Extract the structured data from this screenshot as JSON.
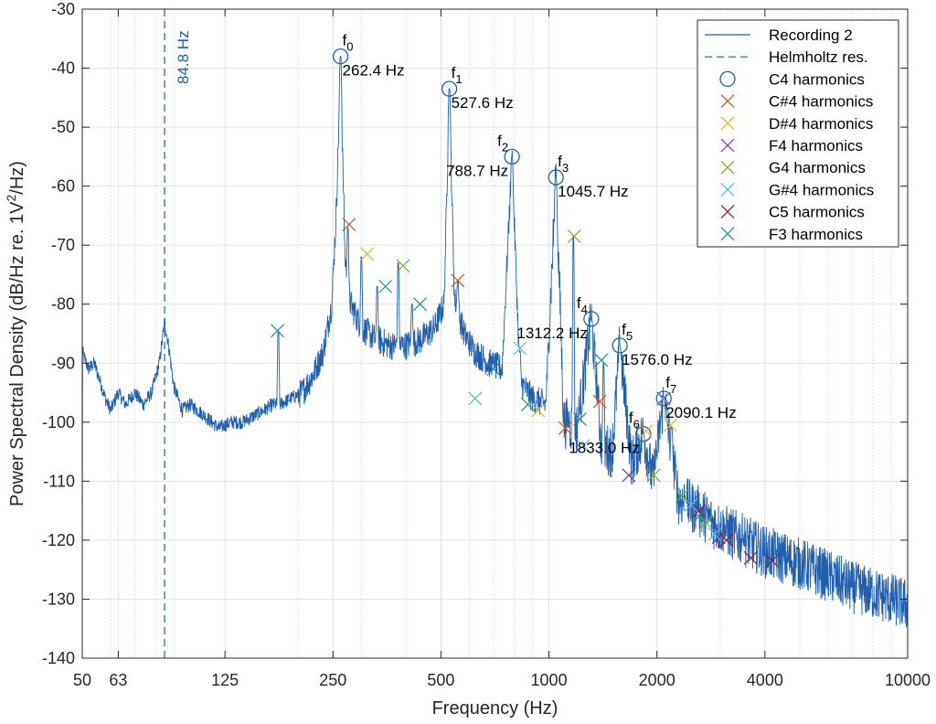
{
  "chart_data": {
    "type": "line",
    "xlabel": "Frequency (Hz)",
    "ylabel_main": "Power Spectral Density (dB/Hz re. 1V",
    "ylabel_sup": "2",
    "ylabel_tail": "/Hz)",
    "x_scale": "log",
    "xlim": [
      50,
      10000
    ],
    "ylim": [
      -140,
      -30
    ],
    "x_ticks": [
      {
        "value": 50,
        "label": "50"
      },
      {
        "value": 63,
        "label": "63"
      },
      {
        "value": 125,
        "label": "125"
      },
      {
        "value": 250,
        "label": "250"
      },
      {
        "value": 500,
        "label": "500"
      },
      {
        "value": 1000,
        "label": "1000"
      },
      {
        "value": 2000,
        "label": "2000"
      },
      {
        "value": 4000,
        "label": "4000"
      },
      {
        "value": 10000,
        "label": "10000"
      }
    ],
    "y_ticks": [
      {
        "value": -30,
        "label": "-30"
      },
      {
        "value": -40,
        "label": "-40"
      },
      {
        "value": -50,
        "label": "-50"
      },
      {
        "value": -60,
        "label": "-60"
      },
      {
        "value": -70,
        "label": "-70"
      },
      {
        "value": -80,
        "label": "-80"
      },
      {
        "value": -90,
        "label": "-90"
      },
      {
        "value": -100,
        "label": "-100"
      },
      {
        "value": -110,
        "label": "-110"
      },
      {
        "value": -120,
        "label": "-120"
      },
      {
        "value": -130,
        "label": "-130"
      },
      {
        "value": -140,
        "label": "-140"
      }
    ],
    "grid": true,
    "minor_grid_x": [
      60,
      70,
      80,
      90,
      200,
      300,
      400,
      600,
      700,
      800,
      900,
      3000,
      5000,
      6000,
      7000,
      8000,
      9000
    ],
    "legend_position": "top-right",
    "line_color": "#1f5fae",
    "spectrum": {
      "name": "Recording 2",
      "base_points": [
        [
          50,
          -88
        ],
        [
          52,
          -91
        ],
        [
          54,
          -90
        ],
        [
          56,
          -93
        ],
        [
          58,
          -96
        ],
        [
          60,
          -98
        ],
        [
          63,
          -95
        ],
        [
          66,
          -97
        ],
        [
          70,
          -95
        ],
        [
          74,
          -97
        ],
        [
          78,
          -95
        ],
        [
          82,
          -90
        ],
        [
          84.8,
          -83
        ],
        [
          87,
          -87
        ],
        [
          90,
          -94
        ],
        [
          95,
          -98
        ],
        [
          100,
          -97
        ],
        [
          110,
          -99
        ],
        [
          120,
          -101
        ],
        [
          130,
          -100
        ],
        [
          140,
          -100
        ],
        [
          150,
          -99
        ],
        [
          160,
          -98
        ],
        [
          170,
          -97
        ],
        [
          178,
          -97
        ],
        [
          190,
          -96
        ],
        [
          205,
          -95
        ],
        [
          220,
          -92
        ],
        [
          235,
          -88
        ],
        [
          248,
          -80
        ],
        [
          255,
          -65
        ],
        [
          258,
          -55
        ],
        [
          262.4,
          -38
        ],
        [
          266,
          -55
        ],
        [
          270,
          -72
        ],
        [
          280,
          -80
        ],
        [
          300,
          -84
        ],
        [
          330,
          -86
        ],
        [
          360,
          -87
        ],
        [
          400,
          -87
        ],
        [
          440,
          -86
        ],
        [
          480,
          -84
        ],
        [
          510,
          -80
        ],
        [
          527.6,
          -43.5
        ],
        [
          545,
          -79
        ],
        [
          580,
          -85
        ],
        [
          620,
          -88
        ],
        [
          680,
          -90
        ],
        [
          740,
          -91
        ],
        [
          788.7,
          -55
        ],
        [
          830,
          -93
        ],
        [
          900,
          -96
        ],
        [
          980,
          -97
        ],
        [
          1045.7,
          -58.5
        ],
        [
          1100,
          -100
        ],
        [
          1200,
          -101
        ],
        [
          1312.2,
          -82.5
        ],
        [
          1400,
          -104
        ],
        [
          1500,
          -105
        ],
        [
          1576,
          -87
        ],
        [
          1700,
          -107
        ],
        [
          1833,
          -102
        ],
        [
          1950,
          -110
        ],
        [
          2090.1,
          -96
        ],
        [
          2300,
          -113
        ],
        [
          2600,
          -115
        ],
        [
          3000,
          -118
        ],
        [
          3500,
          -120
        ],
        [
          4000,
          -122
        ],
        [
          5000,
          -124
        ],
        [
          6000,
          -126
        ],
        [
          7000,
          -128
        ],
        [
          8000,
          -129
        ],
        [
          9000,
          -130
        ],
        [
          10000,
          -131
        ]
      ],
      "spikes": [
        [
          176,
          -84.5
        ],
        [
          262.4,
          -38
        ],
        [
          275,
          -67
        ],
        [
          300,
          -72
        ],
        [
          332,
          -77
        ],
        [
          380,
          -73
        ],
        [
          415,
          -80
        ],
        [
          527.6,
          -43.5
        ],
        [
          557,
          -76
        ],
        [
          600,
          -96
        ],
        [
          700,
          -91
        ],
        [
          788.7,
          -55
        ],
        [
          830,
          -88
        ],
        [
          880,
          -97
        ],
        [
          930,
          -98
        ],
        [
          1045.7,
          -58.5
        ],
        [
          1130,
          -101
        ],
        [
          1170,
          -68.5
        ],
        [
          1210,
          -100
        ],
        [
          1312.2,
          -82.5
        ],
        [
          1360,
          -97
        ],
        [
          1420,
          -90
        ],
        [
          1576,
          -87
        ],
        [
          1670,
          -110
        ],
        [
          1833,
          -102
        ],
        [
          1990,
          -109
        ],
        [
          2090.1,
          -96
        ],
        [
          2200,
          -101
        ],
        [
          2400,
          -113
        ],
        [
          2600,
          -115
        ],
        [
          2800,
          -117
        ],
        [
          3100,
          -120
        ],
        [
          3500,
          -121
        ]
      ]
    },
    "helmholtz": {
      "name": "Helmholtz res.",
      "x": 84.8,
      "label": "84.8 Hz",
      "color": "#1f5fae"
    },
    "peaks": [
      {
        "f": 262.4,
        "db": -38,
        "sym": "f",
        "sub": "0",
        "freq_label": "262.4 Hz",
        "sym_anchor": "top-right",
        "freq_anchor": "below-right"
      },
      {
        "f": 527.6,
        "db": -43.5,
        "sym": "f",
        "sub": "1",
        "freq_label": "527.6 Hz",
        "sym_anchor": "top-right",
        "freq_anchor": "below-right"
      },
      {
        "f": 788.7,
        "db": -55,
        "sym": "f",
        "sub": "2",
        "freq_label": "788.7 Hz",
        "sym_anchor": "top-left",
        "freq_anchor": "below-left"
      },
      {
        "f": 1045.7,
        "db": -58.5,
        "sym": "f",
        "sub": "3",
        "freq_label": "1045.7 Hz",
        "sym_anchor": "top-right",
        "freq_anchor": "below-right"
      },
      {
        "f": 1312.2,
        "db": -82.5,
        "sym": "f",
        "sub": "4",
        "freq_label": "1312.2 Hz",
        "sym_anchor": "top-left",
        "freq_anchor": "below-left"
      },
      {
        "f": 1576.0,
        "db": -87,
        "sym": "f",
        "sub": "5",
        "freq_label": "1576.0 Hz",
        "sym_anchor": "top-right",
        "freq_anchor": "below-right"
      },
      {
        "f": 1833.0,
        "db": -102,
        "sym": "f",
        "sub": "6",
        "freq_label": "1833.0 Hz",
        "sym_anchor": "top-left",
        "freq_anchor": "below-left"
      },
      {
        "f": 2090.1,
        "db": -96,
        "sym": "f",
        "sub": "7",
        "freq_label": "2090.1 Hz",
        "sym_anchor": "top-right",
        "freq_anchor": "below-right"
      }
    ],
    "series": [
      {
        "name": "C4 harmonics",
        "marker": "circle",
        "color": "#1f5fae",
        "points": [
          [
            262.4,
            -38
          ],
          [
            527.6,
            -43.5
          ],
          [
            788.7,
            -55
          ],
          [
            1045.7,
            -58.5
          ],
          [
            1312.2,
            -82.5
          ],
          [
            1576.0,
            -87
          ],
          [
            1833.0,
            -102
          ],
          [
            2090.1,
            -96
          ]
        ]
      },
      {
        "name": "C#4 harmonics",
        "marker": "x",
        "color": "#d95319",
        "points": [
          [
            277,
            -66.5
          ],
          [
            557,
            -76
          ],
          [
            1110,
            -101
          ],
          [
            1385,
            -96.5
          ]
        ]
      },
      {
        "name": "D#4 harmonics",
        "marker": "x",
        "color": "#edb120",
        "points": [
          [
            311,
            -71.5
          ],
          [
            622,
            -96
          ],
          [
            933,
            -98
          ],
          [
            1866,
            -101.5
          ],
          [
            2180,
            -100.5
          ]
        ]
      },
      {
        "name": "F4 harmonics",
        "marker": "x",
        "color": "#7e2f8e",
        "points": [
          [
            1670,
            -109
          ],
          [
            2090,
            -96
          ],
          [
            2970,
            -119.5
          ]
        ]
      },
      {
        "name": "G4 harmonics",
        "marker": "x",
        "color": "#77ac30",
        "points": [
          [
            392,
            -73.5
          ],
          [
            1176,
            -68.5
          ],
          [
            1960,
            -109
          ],
          [
            2350,
            -112.5
          ],
          [
            2740,
            -117
          ]
        ]
      },
      {
        "name": "G#4 harmonics",
        "marker": "x",
        "color": "#4dbeee",
        "points": [
          [
            623,
            -96
          ],
          [
            830,
            -87.5
          ],
          [
            1245,
            -104
          ],
          [
            2075,
            -96
          ],
          [
            2490,
            -114
          ],
          [
            2900,
            -119
          ]
        ]
      },
      {
        "name": "C5 harmonics",
        "marker": "x",
        "color": "#a2142f",
        "points": [
          [
            2620,
            -115
          ],
          [
            3130,
            -120
          ],
          [
            3650,
            -123
          ],
          [
            4190,
            -123.5
          ]
        ]
      },
      {
        "name": "F3 harmonics",
        "marker": "x",
        "color": "#1f8e8e",
        "points": [
          [
            175,
            -84.5
          ],
          [
            350,
            -77
          ],
          [
            437,
            -80
          ],
          [
            700,
            -91
          ],
          [
            873,
            -97
          ],
          [
            1220,
            -99.5
          ],
          [
            1400,
            -89.5
          ],
          [
            2620,
            -116
          ]
        ]
      }
    ]
  }
}
